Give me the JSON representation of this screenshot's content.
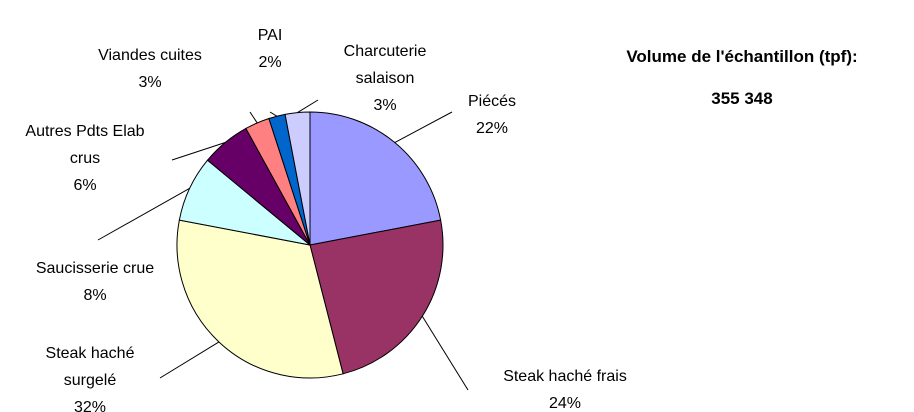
{
  "chart_data": {
    "type": "pie",
    "annotations": [
      "Volume de l'échantillon (tpf):",
      "355 348"
    ],
    "categories": [
      "Piécés",
      "Steak haché frais",
      "Steak haché surgelé",
      "Saucisserie crue",
      "Autres Pdts Elab crus",
      "Viandes cuites",
      "PAI",
      "Charcuterie salaison"
    ],
    "values": [
      22,
      24,
      32,
      8,
      6,
      3,
      2,
      3
    ],
    "value_labels": [
      "22%",
      "24%",
      "32%",
      "8%",
      "6%",
      "3%",
      "2%",
      "3%"
    ],
    "colors": [
      "#9999ff",
      "#993366",
      "#ffffcc",
      "#ccffff",
      "#660066",
      "#ff8080",
      "#0066cc",
      "#ccccff"
    ]
  }
}
